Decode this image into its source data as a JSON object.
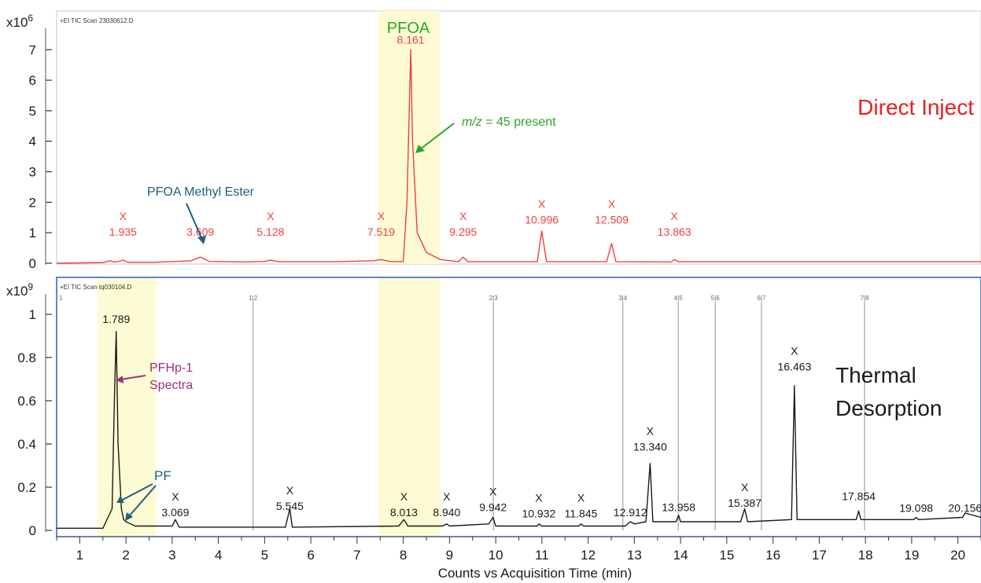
{
  "chart_data": [
    {
      "type": "line",
      "header": "+EI TIC Scan 23030612.D",
      "ymult": "x10",
      "yexp": "6",
      "ylim": [
        0,
        7.6
      ],
      "yticks": [
        0,
        1,
        2,
        3,
        4,
        5,
        6,
        7
      ],
      "color": "#f04040",
      "series": [
        {
          "x": [
            0.5,
            1.5,
            1.65,
            1.75,
            1.85,
            1.935,
            2.05,
            2.6,
            3.4,
            3.609,
            3.8,
            4.6,
            5.0,
            5.128,
            5.3,
            6.5,
            7.35,
            7.519,
            7.7,
            8.0,
            8.08,
            8.161,
            8.2,
            8.3,
            8.5,
            8.8,
            9.2,
            9.295,
            9.4,
            10.9,
            10.996,
            11.1,
            12.4,
            12.509,
            12.6,
            13.8,
            13.863,
            13.95,
            15.0,
            20.5
          ],
          "y": [
            0.0,
            0.02,
            0.08,
            0.04,
            0.06,
            0.1,
            0.03,
            0.03,
            0.08,
            0.2,
            0.06,
            0.04,
            0.06,
            0.1,
            0.05,
            0.05,
            0.08,
            0.12,
            0.06,
            0.05,
            2.0,
            7.0,
            4.0,
            1.0,
            0.35,
            0.12,
            0.05,
            0.2,
            0.05,
            0.05,
            1.05,
            0.05,
            0.05,
            0.65,
            0.05,
            0.04,
            0.12,
            0.05,
            0.05,
            0.05
          ]
        }
      ],
      "peak_labels": [
        "1.935",
        "3.609",
        "5.128",
        "7.519",
        "8.161",
        "9.295",
        "10.996",
        "12.509",
        "13.863"
      ],
      "peak_x": [
        1.935,
        3.609,
        5.128,
        7.519,
        8.161,
        9.295,
        10.996,
        12.509,
        13.863
      ],
      "peak_y": [
        0.9,
        0.9,
        0.9,
        0.9,
        7.2,
        0.9,
        1.3,
        1.3,
        0.9
      ],
      "x_marked": [
        true,
        false,
        true,
        true,
        false,
        true,
        true,
        true,
        true
      ],
      "annotations": {
        "highlight_label": "PFOA",
        "methyl_ester": "PFOA Methyl Ester",
        "mz_prefix": "m/z",
        "mz_suffix": " = 45 present",
        "method": "Direct Inject"
      }
    },
    {
      "type": "line",
      "header": "+EI TIC Scan tq030104.D",
      "ymult": "x10",
      "yexp": "9",
      "ylim": [
        0,
        1.08
      ],
      "yticks": [
        0,
        0.2,
        0.4,
        0.6,
        0.8,
        1
      ],
      "ytick_labels": [
        "0",
        "0.2",
        "0.4",
        "0.6",
        "0.8",
        "1"
      ],
      "color": "#1a1a1a",
      "series": [
        {
          "x": [
            0.5,
            1.5,
            1.7,
            1.75,
            1.789,
            1.83,
            1.9,
            1.95,
            2.0,
            2.1,
            2.2,
            2.5,
            3.0,
            3.069,
            3.15,
            5.45,
            5.545,
            5.6,
            7.9,
            8.013,
            8.1,
            8.85,
            8.94,
            9.0,
            9.85,
            9.942,
            10.0,
            10.9,
            10.932,
            11.0,
            11.8,
            11.845,
            11.9,
            12.8,
            12.912,
            13.0,
            13.25,
            13.34,
            13.4,
            13.9,
            13.958,
            14.0,
            15.3,
            15.387,
            15.45,
            16.4,
            16.463,
            16.52,
            17.8,
            17.854,
            17.9,
            19.05,
            19.098,
            19.15,
            20.1,
            20.156,
            20.5
          ],
          "y": [
            0.01,
            0.01,
            0.1,
            0.6,
            0.92,
            0.4,
            0.1,
            0.05,
            0.04,
            0.03,
            0.02,
            0.02,
            0.02,
            0.05,
            0.015,
            0.015,
            0.1,
            0.015,
            0.02,
            0.05,
            0.02,
            0.02,
            0.03,
            0.02,
            0.03,
            0.06,
            0.02,
            0.02,
            0.03,
            0.02,
            0.02,
            0.03,
            0.02,
            0.02,
            0.04,
            0.03,
            0.04,
            0.31,
            0.04,
            0.04,
            0.07,
            0.04,
            0.04,
            0.1,
            0.04,
            0.05,
            0.67,
            0.05,
            0.05,
            0.09,
            0.05,
            0.05,
            0.06,
            0.05,
            0.06,
            0.08,
            0.06
          ]
        }
      ],
      "peak_labels": [
        "1.789",
        "3.069",
        "5.545",
        "8.013",
        "8.940",
        "9.942",
        "10.932",
        "11.845",
        "12.912",
        "13.340",
        "13.958",
        "15.387",
        "16.463",
        "17.854",
        "19.098",
        "20.156"
      ],
      "peak_x": [
        1.789,
        3.069,
        5.545,
        8.013,
        8.94,
        9.942,
        10.932,
        11.845,
        12.912,
        13.34,
        13.958,
        15.387,
        16.463,
        17.854,
        19.098,
        20.156
      ],
      "peak_y": [
        0.96,
        0.065,
        0.095,
        0.065,
        0.065,
        0.09,
        0.06,
        0.06,
        0.065,
        0.37,
        0.09,
        0.11,
        0.74,
        0.14,
        0.085,
        0.085
      ],
      "x_marked": [
        false,
        true,
        true,
        true,
        true,
        true,
        true,
        true,
        false,
        true,
        false,
        true,
        true,
        false,
        false,
        false
      ],
      "markers": [
        {
          "label": "1|2",
          "x": 4.75
        },
        {
          "label": "2|3",
          "x": 9.95
        },
        {
          "label": "3|4",
          "x": 12.75
        },
        {
          "label": "4|5",
          "x": 13.95
        },
        {
          "label": "5|6",
          "x": 14.75
        },
        {
          "label": "6|7",
          "x": 15.75
        },
        {
          "label": "7|8",
          "x": 17.98
        }
      ],
      "start_marker": "1",
      "annotations": {
        "pfhp_line1": "PFHp-1",
        "pfhp_line2": "Spectra",
        "pf": "PF",
        "method_line1": "Thermal",
        "method_line2": "Desorption"
      }
    }
  ],
  "x_axis": {
    "label": "Counts vs Acquisition Time (min)",
    "ticks": [
      1,
      2,
      3,
      4,
      5,
      6,
      7,
      8,
      9,
      10,
      11,
      12,
      13,
      14,
      15,
      16,
      17,
      18,
      19,
      20
    ],
    "xlim": [
      0.5,
      20.5
    ]
  },
  "highlights": {
    "top": [
      7.47,
      8.8
    ],
    "bottom_a": [
      1.38,
      2.65
    ],
    "bottom_b": [
      7.47,
      8.8
    ]
  },
  "colors": {
    "top_trace": "#f04040",
    "bottom_trace": "#1a1a1a",
    "highlight": "#fdfbd3",
    "pfoa_label": "#2aa52a",
    "methyl_ester": "#1f5f80",
    "pfhp": "#a0307f",
    "pf": "#1f5f80",
    "direct_inject": "#e82020",
    "thermal": "#1a1a1a",
    "frame": "#2f5fbf",
    "marker_line": "#b0b0b0"
  }
}
